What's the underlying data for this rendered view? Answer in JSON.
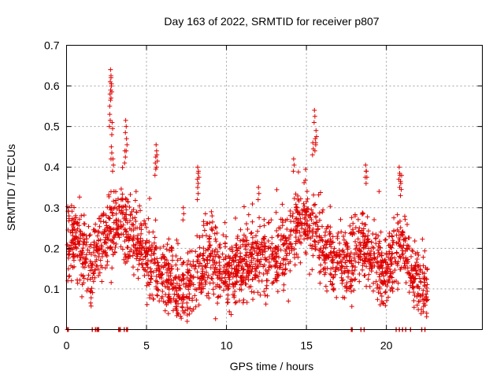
{
  "chart_data": {
    "type": "scatter",
    "title": "Day 163 of 2022, SRMTID for receiver p807",
    "xlabel": "GPS time / hours",
    "ylabel": "SRMTID / TECUs",
    "xlim": [
      0,
      26
    ],
    "ylim": [
      0,
      0.7
    ],
    "x_ticks": [
      0,
      5,
      10,
      15,
      20
    ],
    "x_tick_labels": [
      "0",
      "5",
      "10",
      "15",
      "20"
    ],
    "y_ticks": [
      0,
      0.1,
      0.2,
      0.3,
      0.4,
      0.5,
      0.6,
      0.7
    ],
    "y_tick_labels": [
      "0",
      "0.1",
      "0.2",
      "0.3",
      "0.4",
      "0.5",
      "0.6",
      "0.7"
    ],
    "grid": true,
    "marker": "+",
    "series_color": "#e00000",
    "x_range_observed": [
      0.05,
      22.6
    ],
    "trend": [
      [
        0.0,
        0.21
      ],
      [
        0.5,
        0.22
      ],
      [
        1.0,
        0.19
      ],
      [
        1.5,
        0.16
      ],
      [
        2.0,
        0.2
      ],
      [
        2.5,
        0.22
      ],
      [
        3.0,
        0.26
      ],
      [
        3.5,
        0.27
      ],
      [
        4.0,
        0.23
      ],
      [
        4.5,
        0.2
      ],
      [
        5.0,
        0.17
      ],
      [
        5.5,
        0.16
      ],
      [
        6.0,
        0.14
      ],
      [
        6.5,
        0.12
      ],
      [
        7.0,
        0.09
      ],
      [
        7.5,
        0.09
      ],
      [
        8.0,
        0.12
      ],
      [
        8.5,
        0.16
      ],
      [
        9.0,
        0.18
      ],
      [
        9.5,
        0.15
      ],
      [
        10.0,
        0.13
      ],
      [
        10.5,
        0.15
      ],
      [
        11.0,
        0.16
      ],
      [
        11.5,
        0.17
      ],
      [
        12.0,
        0.18
      ],
      [
        12.5,
        0.17
      ],
      [
        13.0,
        0.17
      ],
      [
        13.5,
        0.19
      ],
      [
        14.0,
        0.21
      ],
      [
        14.5,
        0.26
      ],
      [
        15.0,
        0.28
      ],
      [
        15.5,
        0.25
      ],
      [
        16.0,
        0.2
      ],
      [
        16.5,
        0.18
      ],
      [
        17.0,
        0.17
      ],
      [
        17.5,
        0.16
      ],
      [
        18.0,
        0.17
      ],
      [
        18.5,
        0.21
      ],
      [
        19.0,
        0.17
      ],
      [
        19.5,
        0.16
      ],
      [
        20.0,
        0.13
      ],
      [
        20.5,
        0.17
      ],
      [
        21.0,
        0.21
      ],
      [
        21.5,
        0.14
      ],
      [
        22.0,
        0.12
      ],
      [
        22.6,
        0.11
      ]
    ],
    "outliers": [
      [
        2.75,
        0.64
      ],
      [
        2.78,
        0.62
      ],
      [
        2.8,
        0.6
      ],
      [
        2.72,
        0.58
      ],
      [
        2.7,
        0.53
      ],
      [
        2.85,
        0.51
      ],
      [
        2.8,
        0.45
      ],
      [
        2.9,
        0.42
      ],
      [
        3.7,
        0.515
      ],
      [
        3.75,
        0.47
      ],
      [
        3.65,
        0.44
      ],
      [
        5.6,
        0.455
      ],
      [
        5.65,
        0.43
      ],
      [
        5.55,
        0.41
      ],
      [
        8.2,
        0.4
      ],
      [
        8.25,
        0.39
      ],
      [
        8.2,
        0.35
      ],
      [
        15.5,
        0.54
      ],
      [
        15.6,
        0.49
      ],
      [
        15.55,
        0.47
      ],
      [
        15.4,
        0.46
      ],
      [
        14.2,
        0.42
      ],
      [
        18.7,
        0.405
      ],
      [
        18.75,
        0.39
      ],
      [
        20.8,
        0.4
      ],
      [
        20.85,
        0.38
      ],
      [
        20.9,
        0.36
      ],
      [
        12.0,
        0.35
      ],
      [
        7.3,
        0.3
      ],
      [
        9.1,
        0.28
      ]
    ],
    "zero_points": [
      0.05,
      0.1,
      1.6,
      1.8,
      1.9,
      1.95,
      2.0,
      3.25,
      3.3,
      3.35,
      3.6,
      3.75,
      3.8,
      17.8,
      17.85,
      18.4,
      18.6,
      20.6,
      20.8,
      21.0,
      21.2,
      21.5,
      22.2,
      22.4
    ]
  }
}
